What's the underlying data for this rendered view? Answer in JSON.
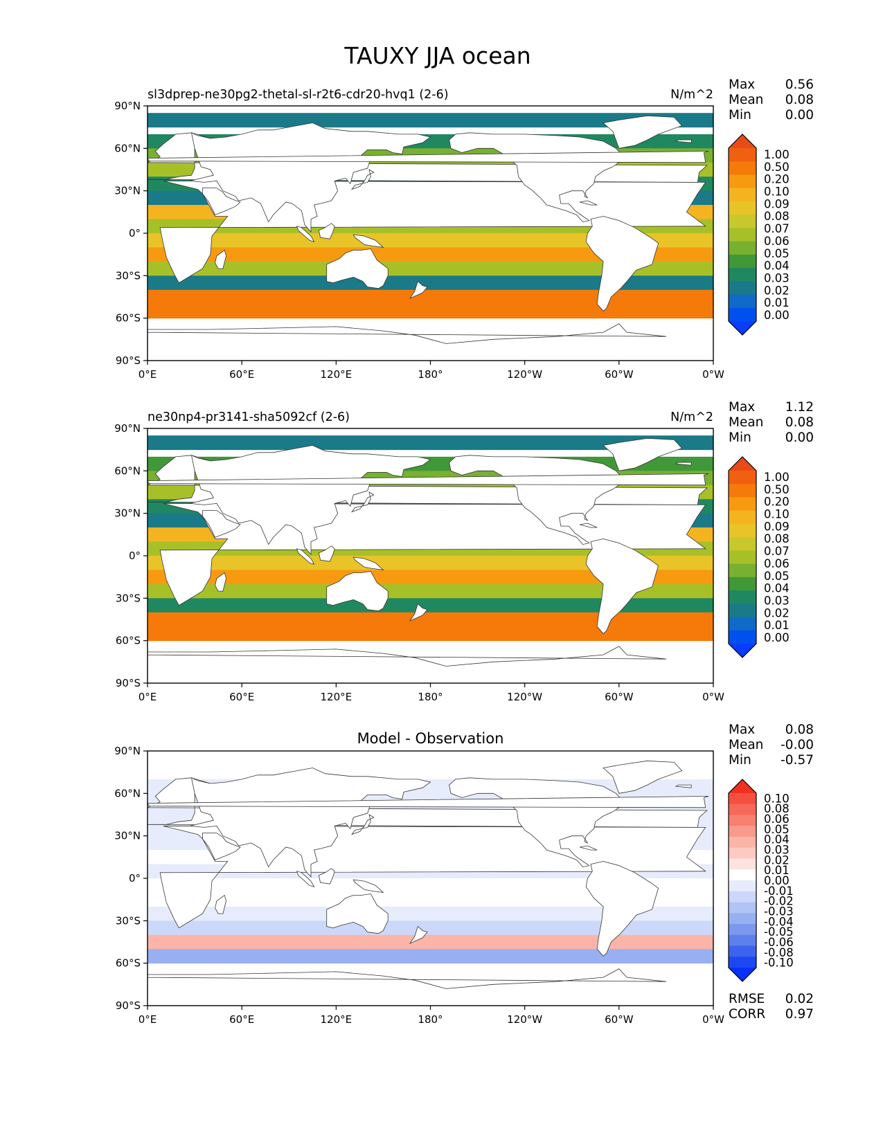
{
  "figure_title": "TAUXY JJA ocean",
  "chart_data": [
    {
      "type": "heatmap",
      "title_left": "sl3dprep-ne30pg2-thetal-sl-r2t6-cdr20-hvq1 (2-6)",
      "title_center": "",
      "units": "N/m^2",
      "stats": [
        {
          "label": "Max",
          "value": "0.56"
        },
        {
          "label": "Mean",
          "value": "0.08"
        },
        {
          "label": "Min",
          "value": "0.00"
        }
      ],
      "colorbar_ticks": [
        "1.00",
        "0.50",
        "0.20",
        "0.10",
        "0.09",
        "0.08",
        "0.07",
        "0.06",
        "0.05",
        "0.04",
        "0.03",
        "0.02",
        "0.01",
        "0.00"
      ],
      "colorbar_colors": [
        "#e84a18",
        "#f06010",
        "#f57a0a",
        "#f79a10",
        "#f4b420",
        "#e8c428",
        "#c8c82c",
        "#a8c028",
        "#78b030",
        "#409838",
        "#208860",
        "#1a7a88",
        "#106ac8",
        "#0050f0",
        "#0a3cff"
      ],
      "x_ticks": [
        "0°E",
        "60°E",
        "120°E",
        "180°",
        "120°W",
        "60°W",
        "0°W"
      ],
      "y_ticks": [
        "90°N",
        "60°N",
        "30°N",
        "0°",
        "30°S",
        "60°S",
        "90°S"
      ],
      "zonal_bands": [
        {
          "lat": 80,
          "value": 0.02
        },
        {
          "lat": 65,
          "value": 0.03
        },
        {
          "lat": 55,
          "value": 0.05
        },
        {
          "lat": 45,
          "value": 0.06
        },
        {
          "lat": 35,
          "value": 0.03
        },
        {
          "lat": 25,
          "value": 0.02
        },
        {
          "lat": 15,
          "value": 0.09
        },
        {
          "lat": 5,
          "value": 0.06
        },
        {
          "lat": -5,
          "value": 0.08
        },
        {
          "lat": -15,
          "value": 0.1
        },
        {
          "lat": -25,
          "value": 0.06
        },
        {
          "lat": -35,
          "value": 0.02
        },
        {
          "lat": -45,
          "value": 0.2
        },
        {
          "lat": -55,
          "value": 0.2
        }
      ]
    },
    {
      "type": "heatmap",
      "title_left": "ne30np4-pr3141-sha5092cf (2-6)",
      "title_center": "",
      "units": "N/m^2",
      "stats": [
        {
          "label": "Max",
          "value": "1.12"
        },
        {
          "label": "Mean",
          "value": "0.08"
        },
        {
          "label": "Min",
          "value": "0.00"
        }
      ],
      "colorbar_ticks": [
        "1.00",
        "0.50",
        "0.20",
        "0.10",
        "0.09",
        "0.08",
        "0.07",
        "0.06",
        "0.05",
        "0.04",
        "0.03",
        "0.02",
        "0.01",
        "0.00"
      ],
      "colorbar_colors": [
        "#e84a18",
        "#f06010",
        "#f57a0a",
        "#f79a10",
        "#f4b420",
        "#e8c428",
        "#c8c82c",
        "#a8c028",
        "#78b030",
        "#409838",
        "#208860",
        "#1a7a88",
        "#106ac8",
        "#0050f0",
        "#0a3cff"
      ],
      "x_ticks": [
        "0°E",
        "60°E",
        "120°E",
        "180°",
        "120°W",
        "60°W",
        "0°W"
      ],
      "y_ticks": [
        "90°N",
        "60°N",
        "30°N",
        "0°",
        "30°S",
        "60°S",
        "90°S"
      ],
      "zonal_bands": [
        {
          "lat": 80,
          "value": 0.02
        },
        {
          "lat": 65,
          "value": 0.04
        },
        {
          "lat": 55,
          "value": 0.05
        },
        {
          "lat": 45,
          "value": 0.06
        },
        {
          "lat": 35,
          "value": 0.03
        },
        {
          "lat": 25,
          "value": 0.02
        },
        {
          "lat": 15,
          "value": 0.09
        },
        {
          "lat": 5,
          "value": 0.06
        },
        {
          "lat": -5,
          "value": 0.08
        },
        {
          "lat": -15,
          "value": 0.1
        },
        {
          "lat": -25,
          "value": 0.06
        },
        {
          "lat": -35,
          "value": 0.03
        },
        {
          "lat": -45,
          "value": 0.2
        },
        {
          "lat": -55,
          "value": 0.2
        }
      ]
    },
    {
      "type": "heatmap",
      "title_left": "",
      "title_center": "Model - Observation",
      "units": "",
      "stats": [
        {
          "label": "Max",
          "value": "0.08"
        },
        {
          "label": "Mean",
          "value": "-0.00"
        },
        {
          "label": "Min",
          "value": "-0.57"
        }
      ],
      "colorbar_ticks": [
        "0.10",
        "0.08",
        "0.06",
        "0.05",
        "0.04",
        "0.03",
        "0.02",
        "0.01",
        "0.00",
        "-0.01",
        "-0.02",
        "-0.03",
        "-0.04",
        "-0.05",
        "-0.06",
        "-0.08",
        "-0.10"
      ],
      "colorbar_colors": [
        "#f03020",
        "#f45040",
        "#f66858",
        "#f88070",
        "#fa9a8c",
        "#fcb4a8",
        "#fdcac2",
        "#fee2de",
        "#ffffff",
        "#e6ecfc",
        "#ccd8fa",
        "#b2c4f6",
        "#98b0f2",
        "#7c98ee",
        "#5c80ec",
        "#3c64ee",
        "#1c48f4",
        "#0830ff"
      ],
      "x_ticks": [
        "0°E",
        "60°E",
        "120°E",
        "180°",
        "120°W",
        "60°W",
        "0°W"
      ],
      "y_ticks": [
        "90°N",
        "60°N",
        "30°N",
        "0°",
        "30°S",
        "60°S",
        "90°S"
      ],
      "zonal_bands": [
        {
          "lat": 80,
          "value": 0.005
        },
        {
          "lat": 65,
          "value": -0.01
        },
        {
          "lat": 55,
          "value": -0.005
        },
        {
          "lat": 45,
          "value": -0.01
        },
        {
          "lat": 35,
          "value": -0.005
        },
        {
          "lat": 25,
          "value": -0.01
        },
        {
          "lat": 15,
          "value": 0.0
        },
        {
          "lat": 5,
          "value": -0.005
        },
        {
          "lat": -5,
          "value": 0.005
        },
        {
          "lat": -15,
          "value": 0.005
        },
        {
          "lat": -25,
          "value": -0.01
        },
        {
          "lat": -35,
          "value": -0.02
        },
        {
          "lat": -45,
          "value": 0.03
        },
        {
          "lat": -55,
          "value": -0.04
        }
      ],
      "extra_stats": [
        {
          "label": "RMSE",
          "value": "0.02"
        },
        {
          "label": "CORR",
          "value": "0.97"
        }
      ]
    }
  ]
}
